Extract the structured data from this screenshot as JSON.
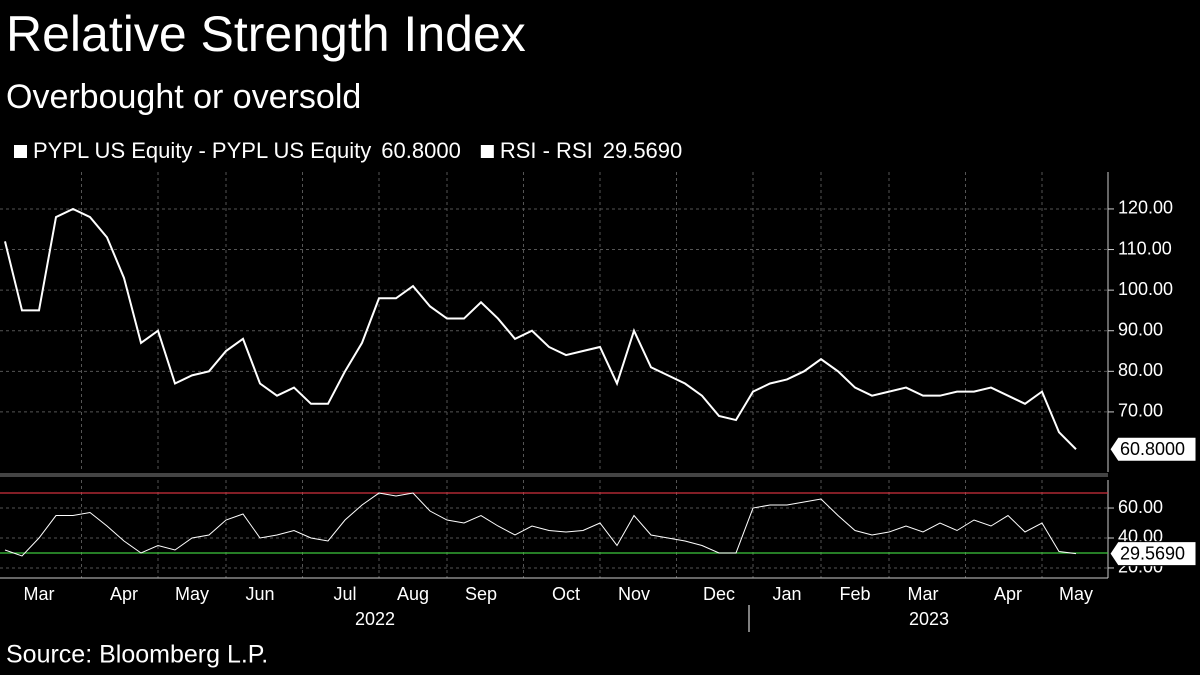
{
  "chart_data": [
    {
      "type": "line",
      "title": "Relative Strength Index",
      "subtitle": "Overbought or oversold",
      "series": [
        {
          "name": "PYPL US Equity - PYPL US Equity",
          "color": "#ffffff",
          "last_value_label": "60.8000",
          "values": [
            112,
            95,
            95,
            118,
            120,
            118,
            113,
            103,
            87,
            90,
            77,
            79,
            80,
            85,
            88,
            77,
            74,
            76,
            72,
            72,
            80,
            87,
            98,
            98,
            101,
            96,
            93,
            93,
            97,
            93,
            88,
            90,
            86,
            84,
            85,
            86,
            77,
            90,
            81,
            79,
            77,
            74,
            69,
            68,
            75,
            77,
            78,
            80,
            83,
            80,
            76,
            74,
            75,
            76,
            74,
            74,
            75,
            75,
            76,
            74,
            72,
            75,
            65,
            60.8
          ]
        }
      ],
      "ylim": [
        55.2,
        129.1
      ],
      "yticks": [
        {
          "value": 70,
          "label": "70.00"
        },
        {
          "value": 80,
          "label": "80.00"
        },
        {
          "value": 90,
          "label": "90.00"
        },
        {
          "value": 100,
          "label": "100.00"
        },
        {
          "value": 110,
          "label": "110.00"
        },
        {
          "value": 120,
          "label": "120.00"
        }
      ],
      "grid": true
    },
    {
      "type": "line",
      "categories": [
        null,
        null,
        "Mar",
        null,
        null,
        null,
        null,
        "Apr",
        null,
        null,
        null,
        "May",
        null,
        null,
        null,
        "Jun",
        null,
        null,
        null,
        null,
        "Jul",
        null,
        null,
        null,
        "Aug",
        null,
        null,
        null,
        "Sep",
        null,
        null,
        null,
        null,
        "Oct",
        null,
        null,
        null,
        "Nov",
        null,
        null,
        null,
        null,
        "Dec",
        null,
        null,
        null,
        "Jan",
        null,
        null,
        null,
        "Feb",
        null,
        null,
        null,
        "Mar",
        null,
        null,
        null,
        null,
        "Apr",
        null,
        null,
        null,
        "May"
      ],
      "x_groups": [
        "2022",
        "2023"
      ],
      "series": [
        {
          "name": "RSI - RSI",
          "color": "#ffffff",
          "last_value_label": "29.5690",
          "values": [
            32,
            28,
            40,
            55,
            55,
            57,
            48,
            38,
            30,
            35,
            32,
            40,
            42,
            52,
            56,
            40,
            42,
            45,
            40,
            38,
            52,
            62,
            70,
            68,
            70,
            58,
            52,
            50,
            55,
            48,
            42,
            48,
            45,
            44,
            45,
            50,
            35,
            55,
            42,
            40,
            38,
            35,
            30,
            30,
            60,
            62,
            62,
            64,
            66,
            55,
            45,
            42,
            44,
            48,
            44,
            50,
            45,
            52,
            48,
            55,
            44,
            50,
            31,
            29.569
          ]
        }
      ],
      "reference_lines": [
        {
          "value": 70,
          "color": "#d0303c"
        },
        {
          "value": 30,
          "color": "#3ec83e"
        }
      ],
      "ylim": [
        13.3,
        78.7
      ],
      "yticks": [
        {
          "value": 20,
          "label": "20.00"
        },
        {
          "value": 40,
          "label": "40.00"
        },
        {
          "value": 60,
          "label": "60.00"
        }
      ],
      "grid": true
    }
  ],
  "source": "Source: Bloomberg L.P."
}
